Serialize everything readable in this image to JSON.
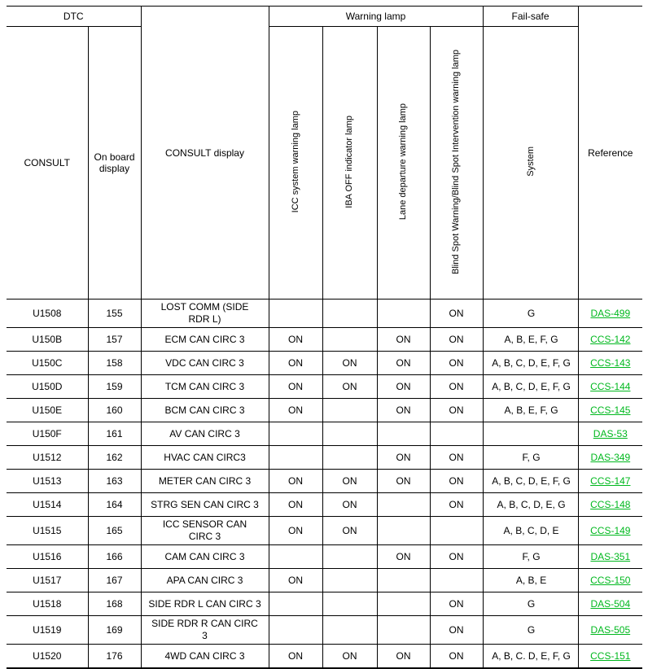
{
  "colors": {
    "link_green": "#00b81e",
    "border": "#000000",
    "background": "#ffffff"
  },
  "table": {
    "headers": {
      "dtc_group": "DTC",
      "consult": "CONSULT",
      "onboard": "On board display",
      "consult_display": "CONSULT display",
      "warning_lamp_group": "Warning lamp",
      "lamp_columns": [
        "ICC system warning lamp",
        "IBA OFF indicator lamp",
        "Lane departure warning lamp",
        "Blind Spot Warning/Blind Spot Intervention warning lamp"
      ],
      "fail_safe_group": "Fail-safe",
      "system": "System",
      "reference": "Reference"
    },
    "rows": [
      {
        "consult": "U1508",
        "onboard": "155",
        "display": "LOST COMM (SIDE\nRDR L)",
        "icc": "",
        "iba": "",
        "lane": "",
        "blind": "ON",
        "system": "G",
        "reference": "DAS-499"
      },
      {
        "consult": "U150B",
        "onboard": "157",
        "display": "ECM CAN CIRC 3",
        "icc": "ON",
        "iba": "",
        "lane": "ON",
        "blind": "ON",
        "system": "A, B, E, F, G",
        "reference": "CCS-142"
      },
      {
        "consult": "U150C",
        "onboard": "158",
        "display": "VDC CAN CIRC 3",
        "icc": "ON",
        "iba": "ON",
        "lane": "ON",
        "blind": "ON",
        "system": "A, B, C, D, E, F, G",
        "reference": "CCS-143"
      },
      {
        "consult": "U150D",
        "onboard": "159",
        "display": "TCM CAN CIRC 3",
        "icc": "ON",
        "iba": "ON",
        "lane": "ON",
        "blind": "ON",
        "system": "A, B, C, D, E, F, G",
        "reference": "CCS-144"
      },
      {
        "consult": "U150E",
        "onboard": "160",
        "display": "BCM CAN CIRC 3",
        "icc": "ON",
        "iba": "",
        "lane": "ON",
        "blind": "ON",
        "system": "A, B, E, F, G",
        "reference": "CCS-145"
      },
      {
        "consult": "U150F",
        "onboard": "161",
        "display": "AV CAN CIRC 3",
        "icc": "",
        "iba": "",
        "lane": "",
        "blind": "",
        "system": "",
        "reference": "DAS-53"
      },
      {
        "consult": "U1512",
        "onboard": "162",
        "display": "HVAC CAN CIRC3",
        "icc": "",
        "iba": "",
        "lane": "ON",
        "blind": "ON",
        "system": "F, G",
        "reference": "DAS-349"
      },
      {
        "consult": "U1513",
        "onboard": "163",
        "display": "METER CAN CIRC 3",
        "icc": "ON",
        "iba": "ON",
        "lane": "ON",
        "blind": "ON",
        "system": "A, B, C, D, E, F, G",
        "reference": "CCS-147"
      },
      {
        "consult": "U1514",
        "onboard": "164",
        "display": "STRG SEN CAN CIRC 3",
        "icc": "ON",
        "iba": "ON",
        "lane": "",
        "blind": "ON",
        "system": "A, B, C, D, E, G",
        "reference": "CCS-148"
      },
      {
        "consult": "U1515",
        "onboard": "165",
        "display": "ICC SENSOR CAN\nCIRC 3",
        "icc": "ON",
        "iba": "ON",
        "lane": "",
        "blind": "",
        "system": "A, B, C, D, E",
        "reference": "CCS-149"
      },
      {
        "consult": "U1516",
        "onboard": "166",
        "display": "CAM CAN CIRC 3",
        "icc": "",
        "iba": "",
        "lane": "ON",
        "blind": "ON",
        "system": "F, G",
        "reference": "DAS-351"
      },
      {
        "consult": "U1517",
        "onboard": "167",
        "display": "APA CAN CIRC 3",
        "icc": "ON",
        "iba": "",
        "lane": "",
        "blind": "",
        "system": "A, B, E",
        "reference": "CCS-150"
      },
      {
        "consult": "U1518",
        "onboard": "168",
        "display": "SIDE RDR L CAN CIRC 3",
        "icc": "",
        "iba": "",
        "lane": "",
        "blind": "ON",
        "system": "G",
        "reference": "DAS-504"
      },
      {
        "consult": "U1519",
        "onboard": "169",
        "display": "SIDE RDR R CAN CIRC\n3",
        "icc": "",
        "iba": "",
        "lane": "",
        "blind": "ON",
        "system": "G",
        "reference": "DAS-505"
      },
      {
        "consult": "U1520",
        "onboard": "176",
        "display": "4WD CAN CIRC 3",
        "icc": "ON",
        "iba": "ON",
        "lane": "ON",
        "blind": "ON",
        "system": "A, B, C. D, E, F, G",
        "reference": "CCS-151"
      }
    ]
  }
}
